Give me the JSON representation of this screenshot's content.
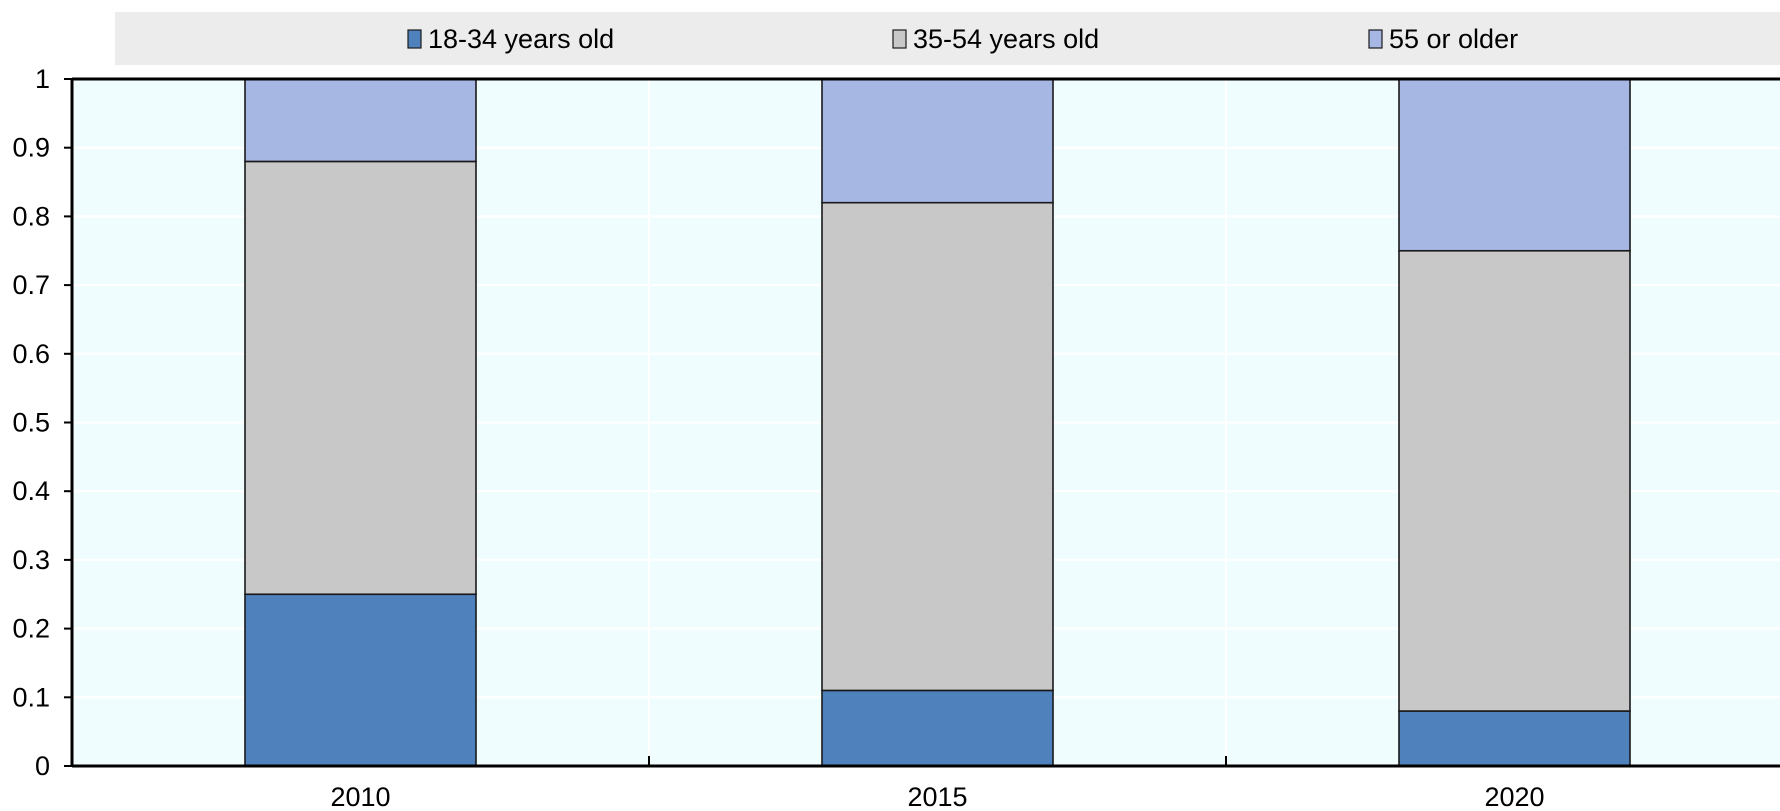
{
  "colors": {
    "plot_background": "#f0fdfe",
    "legend_background": "#ececec",
    "axis": "#000000",
    "gridline": "#ffffff",
    "bar_outline": "#1a1a1a"
  },
  "chart_data": {
    "type": "bar",
    "stacked": true,
    "orientation": "vertical",
    "categories": [
      "2010",
      "2015",
      "2020"
    ],
    "series": [
      {
        "name": "18-34 years old",
        "color": "#4f81bd",
        "values": [
          0.25,
          0.11,
          0.08
        ]
      },
      {
        "name": "35-54 years old",
        "color": "#c8c8c8",
        "values": [
          0.63,
          0.71,
          0.67
        ]
      },
      {
        "name": "55 or older",
        "color": "#a6b7e3",
        "values": [
          0.12,
          0.18,
          0.25
        ]
      }
    ],
    "ylim": [
      0,
      1
    ],
    "yticks": [
      "0",
      "0.1",
      "0.2",
      "0.3",
      "0.4",
      "0.5",
      "0.6",
      "0.7",
      "0.8",
      "0.9",
      "1"
    ],
    "legend_position": "top",
    "grid": true
  }
}
